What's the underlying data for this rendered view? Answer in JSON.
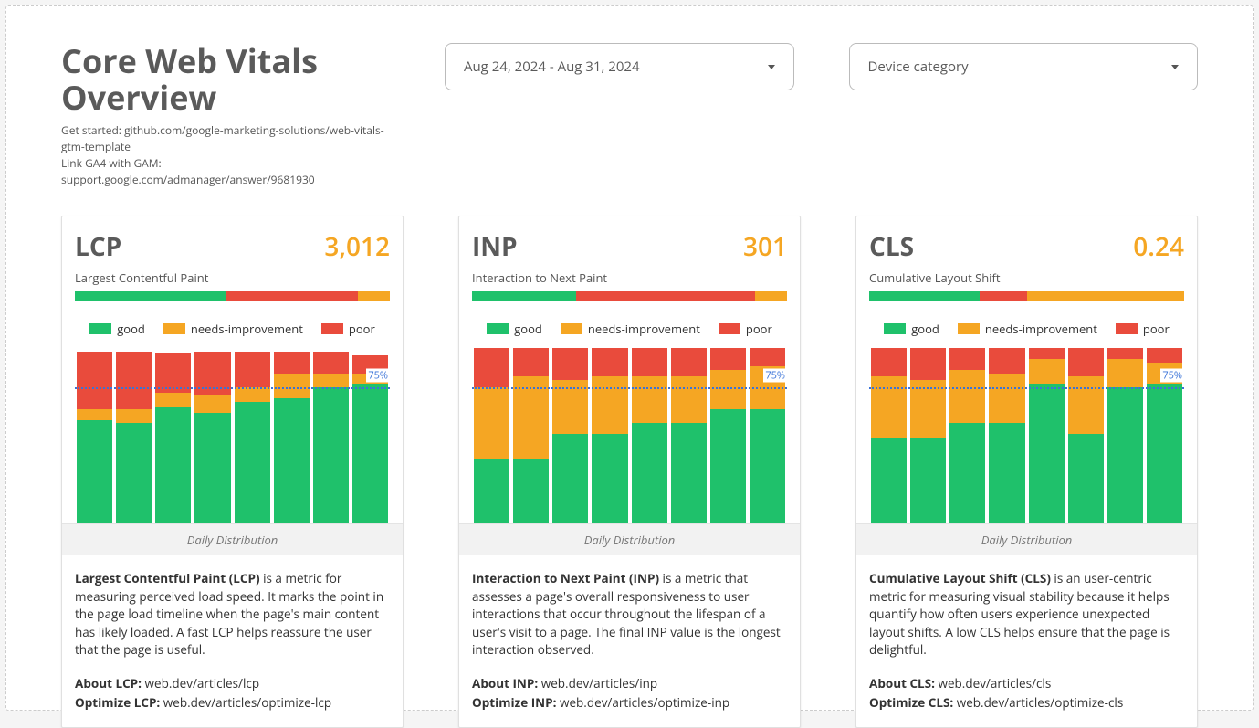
{
  "colors": {
    "good": "#1fc16b",
    "ni": "#f5a623",
    "poor": "#e94b3c",
    "accent_orange": "#f5a623",
    "threshold": "#3a73d8"
  },
  "title": "Core Web Vitals Overview",
  "helper1_label": "Get started:",
  "helper1_link": "github.com/google-marketing-solutions/web-vitals-gtm-template",
  "helper2_label": "Link GA4 with GAM:",
  "helper2_link": "support.google.com/admanager/answer/9681930",
  "date_range": "Aug 24, 2024 - Aug 31, 2024",
  "device_filter": "Device category",
  "legend": {
    "good": "good",
    "ni": "needs-improvement",
    "poor": "poor"
  },
  "threshold_pct": 75,
  "threshold_label": "75%",
  "chart_caption": "Daily Distribution",
  "cards": {
    "lcp": {
      "abbr": "LCP",
      "value": "3,012",
      "full": "Largest Contentful Paint",
      "summary": {
        "good": 48,
        "poor": 42,
        "ni": 10
      },
      "days": [
        {
          "good": 58,
          "ni": 6,
          "poor": 32
        },
        {
          "good": 56,
          "ni": 8,
          "poor": 32
        },
        {
          "good": 65,
          "ni": 8,
          "poor": 22
        },
        {
          "good": 62,
          "ni": 10,
          "poor": 24
        },
        {
          "good": 68,
          "ni": 8,
          "poor": 20
        },
        {
          "good": 70,
          "ni": 14,
          "poor": 12
        },
        {
          "good": 76,
          "ni": 8,
          "poor": 12
        },
        {
          "good": 78,
          "ni": 6,
          "poor": 10
        }
      ],
      "desc_bold": "Largest Contentful Paint (LCP)",
      "desc_rest": " is a metric for measuring perceived load speed. It marks the point in the page load timeline when the page's main content has likely loaded. A fast LCP helps reassure the user that the page is useful.",
      "about_label": "About LCP:",
      "about_link": "web.dev/articles/lcp",
      "optimize_label": "Optimize LCP:",
      "optimize_link": "web.dev/articles/optimize-lcp"
    },
    "inp": {
      "abbr": "INP",
      "value": "301",
      "full": "Interaction to Next Paint",
      "summary": {
        "good": 33,
        "poor": 57,
        "ni": 10
      },
      "days": [
        {
          "good": 36,
          "ni": 40,
          "poor": 22
        },
        {
          "good": 36,
          "ni": 46,
          "poor": 16
        },
        {
          "good": 50,
          "ni": 30,
          "poor": 18
        },
        {
          "good": 50,
          "ni": 32,
          "poor": 16
        },
        {
          "good": 56,
          "ni": 26,
          "poor": 16
        },
        {
          "good": 56,
          "ni": 26,
          "poor": 16
        },
        {
          "good": 64,
          "ni": 22,
          "poor": 12
        },
        {
          "good": 64,
          "ni": 24,
          "poor": 10
        }
      ],
      "desc_bold": "Interaction to Next Paint (INP)",
      "desc_rest": " is a metric that assesses a page's overall responsiveness to user interactions that occur throughout the lifespan of a user's visit to a page. The final INP value is the longest interaction observed.",
      "about_label": "About INP:",
      "about_link": "web.dev/articles/inp",
      "optimize_label": "Optimize INP:",
      "optimize_link": "web.dev/articles/optimize-inp"
    },
    "cls": {
      "abbr": "CLS",
      "value": "0.24",
      "full": "Cumulative Layout Shift",
      "summary": {
        "good": 35,
        "ni": 50,
        "poor": 15
      },
      "days": [
        {
          "good": 48,
          "ni": 34,
          "poor": 16
        },
        {
          "good": 48,
          "ni": 32,
          "poor": 18
        },
        {
          "good": 56,
          "ni": 30,
          "poor": 12
        },
        {
          "good": 56,
          "ni": 28,
          "poor": 14
        },
        {
          "good": 78,
          "ni": 14,
          "poor": 6
        },
        {
          "good": 50,
          "ni": 32,
          "poor": 16
        },
        {
          "good": 76,
          "ni": 16,
          "poor": 6
        },
        {
          "good": 78,
          "ni": 12,
          "poor": 8
        }
      ],
      "desc_bold": "Cumulative Layout Shift (CLS)",
      "desc_rest": " is an user-centric metric for measuring visual stability because it helps quantify how often users experience unexpected layout shifts. A low CLS helps ensure that the page is delightful.",
      "about_label": "About CLS:",
      "about_link": "web.dev/articles/cls",
      "optimize_label": "Optimize CLS:",
      "optimize_link": "web.dev/articles/optimize-cls"
    }
  }
}
